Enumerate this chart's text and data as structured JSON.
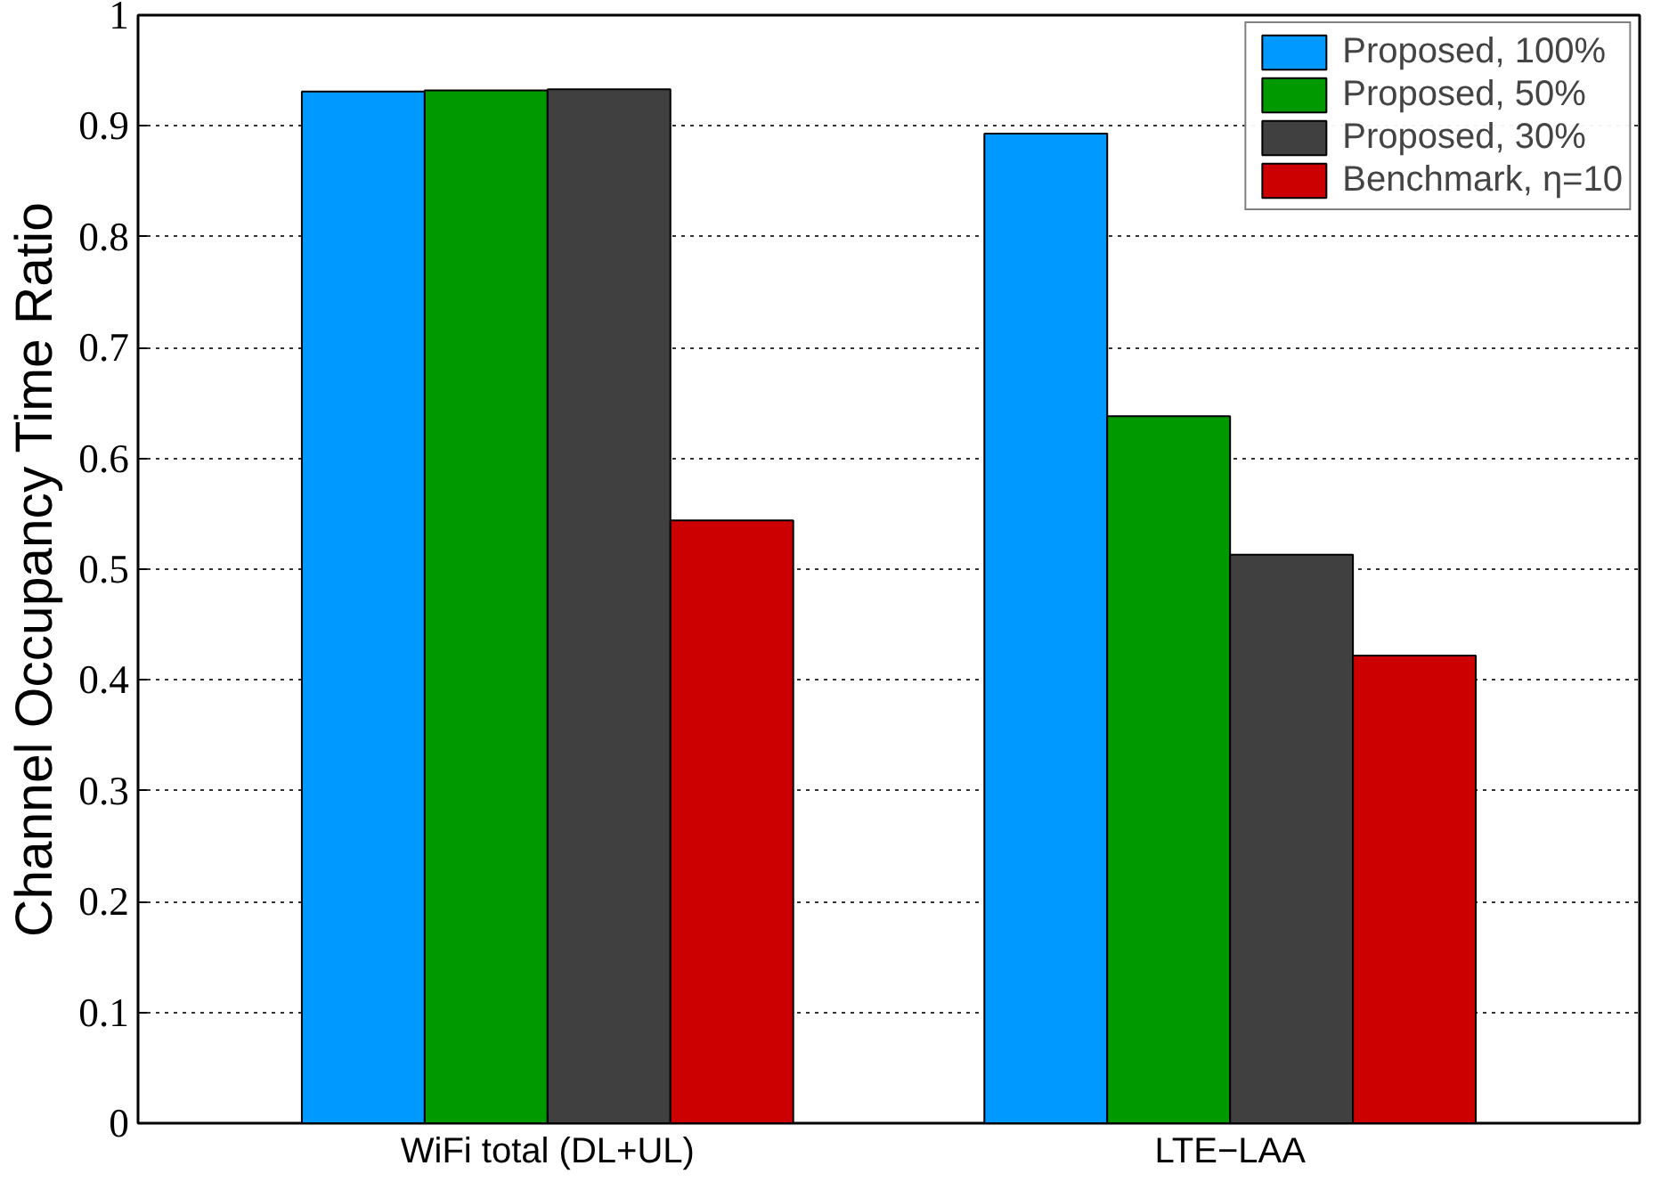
{
  "chart_data": {
    "type": "bar",
    "ylabel": "Channel Occupancy Time Ratio",
    "categories": [
      "WiFi total (DL+UL)",
      "LTE−LAA"
    ],
    "series": [
      {
        "name": "Proposed, 100%",
        "color": "#0099ff",
        "values": [
          0.931,
          0.893
        ]
      },
      {
        "name": "Proposed, 50%",
        "color": "#009900",
        "values": [
          0.932,
          0.638
        ]
      },
      {
        "name": "Proposed, 30%",
        "color": "#404040",
        "values": [
          0.933,
          0.513
        ]
      },
      {
        "name": "Benchmark, η=10",
        "color": "#cc0000",
        "values": [
          0.544,
          0.422
        ]
      }
    ],
    "ylim": [
      0,
      1
    ],
    "yticks": [
      0,
      0.1,
      0.2,
      0.3,
      0.4,
      0.5,
      0.6,
      0.7,
      0.8,
      0.9,
      1
    ],
    "grid": "y",
    "legend": "top right"
  }
}
